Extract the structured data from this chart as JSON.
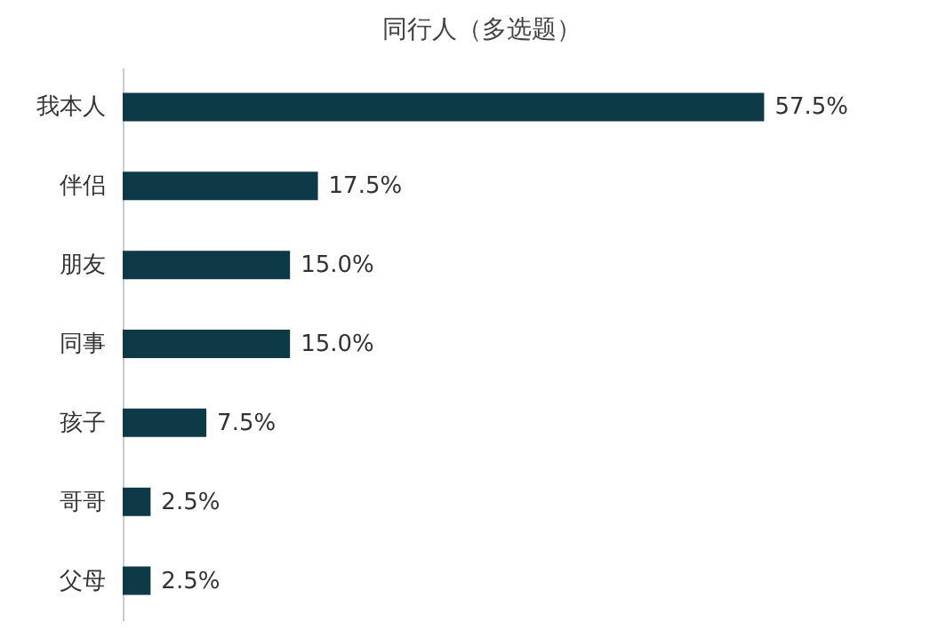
{
  "chart_data": {
    "type": "bar",
    "orientation": "horizontal",
    "title": "同行人（多选题）",
    "categories": [
      "我本人",
      "伴侣",
      "朋友",
      "同事",
      "孩子",
      "哥哥",
      "父母"
    ],
    "values": [
      57.5,
      17.5,
      15.0,
      15.0,
      7.5,
      2.5,
      2.5
    ],
    "value_labels": [
      "57.5%",
      "17.5%",
      "15.0%",
      "15.0%",
      "7.5%",
      "2.5%",
      "2.5%"
    ],
    "color": "#0e3a48",
    "tick_labels": "y"
  }
}
